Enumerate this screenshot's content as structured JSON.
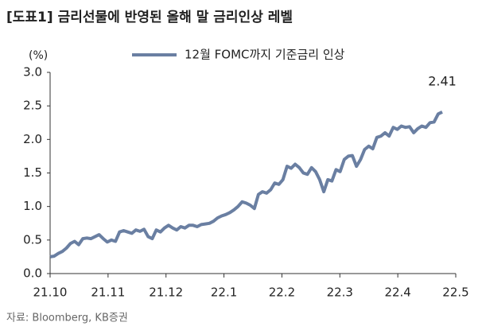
{
  "chart_data": {
    "type": "line",
    "title": "[도표1] 금리선물에 반영된 올해 말 금리인상 레벨",
    "y_unit": "(%)",
    "source": "자료: Bloomberg, KB증권",
    "annotation": "2.41",
    "xticks": [
      "21.10",
      "21.11",
      "21.12",
      "22.1",
      "22.2",
      "22.3",
      "22.4",
      "22.5"
    ],
    "ylim": [
      0,
      3
    ],
    "yticks": [
      {
        "value": 0,
        "label": "0.0"
      },
      {
        "value": 0.5,
        "label": "0.5"
      },
      {
        "value": 1,
        "label": "1.0"
      },
      {
        "value": 1.5,
        "label": "1.5"
      },
      {
        "value": 2,
        "label": "2.0"
      },
      {
        "value": 2.5,
        "label": "2.5"
      },
      {
        "value": 3,
        "label": "3.0"
      }
    ],
    "legend": "top",
    "series": [
      {
        "name": "12월 FOMC까지 기준금리 인상",
        "color": "#6a7fa2",
        "values": [
          0.25,
          0.26,
          0.3,
          0.33,
          0.38,
          0.45,
          0.48,
          0.43,
          0.52,
          0.53,
          0.52,
          0.55,
          0.58,
          0.52,
          0.47,
          0.5,
          0.48,
          0.62,
          0.64,
          0.62,
          0.6,
          0.65,
          0.63,
          0.66,
          0.55,
          0.52,
          0.65,
          0.62,
          0.68,
          0.72,
          0.68,
          0.65,
          0.7,
          0.68,
          0.72,
          0.72,
          0.7,
          0.73,
          0.74,
          0.75,
          0.78,
          0.83,
          0.86,
          0.88,
          0.91,
          0.95,
          1.0,
          1.07,
          1.05,
          1.02,
          0.97,
          1.18,
          1.22,
          1.2,
          1.25,
          1.35,
          1.33,
          1.4,
          1.6,
          1.57,
          1.63,
          1.58,
          1.5,
          1.48,
          1.58,
          1.52,
          1.4,
          1.22,
          1.4,
          1.38,
          1.55,
          1.52,
          1.7,
          1.75,
          1.76,
          1.6,
          1.7,
          1.85,
          1.9,
          1.86,
          2.03,
          2.05,
          2.1,
          2.05,
          2.18,
          2.15,
          2.2,
          2.18,
          2.19,
          2.1,
          2.16,
          2.2,
          2.18,
          2.25,
          2.26,
          2.38,
          2.41
        ]
      }
    ]
  }
}
